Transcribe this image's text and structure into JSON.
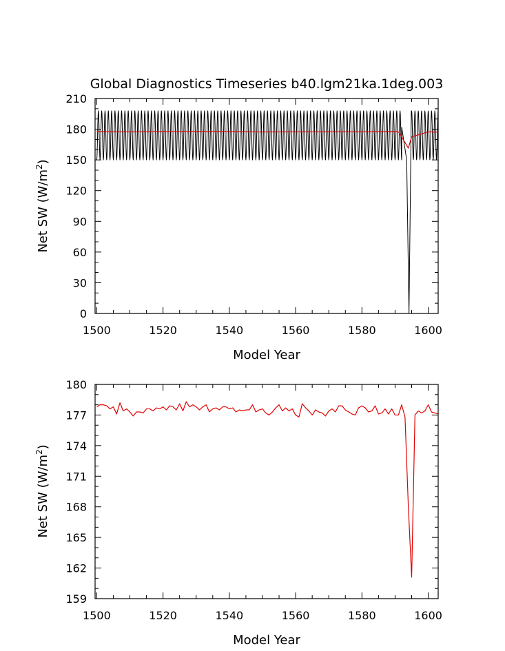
{
  "figure": {
    "title": "Global Diagnostics Timeseries b40.lgm21ka.1deg.003"
  },
  "colors": {
    "monthly_series": "#000000",
    "annual_series": "#e00000",
    "axes": "#000000",
    "background": "#ffffff"
  },
  "chart_data": [
    {
      "type": "line",
      "title": "Global Diagnostics Timeseries b40.lgm21ka.1deg.003",
      "xlabel": "Model Year",
      "ylabel_main": "Net SW (W/m",
      "ylabel_sup": "2",
      "ylabel_close": ")",
      "xlim": [
        1499.5,
        1603
      ],
      "ylim": [
        0,
        210
      ],
      "xticks": [
        1500,
        1520,
        1540,
        1560,
        1580,
        1600
      ],
      "yticks": [
        0,
        30,
        60,
        90,
        120,
        150,
        180,
        210
      ],
      "grid": false,
      "series": [
        {
          "role": "monthly",
          "color": "#000000",
          "x_start": 1500,
          "x_end": 1603,
          "cycle_years": 1,
          "min": 150,
          "max": 198,
          "dropout": {
            "start_year": 1592,
            "x": [
              1592.0,
              1593.5,
              1594.2,
              1594.9
            ],
            "y": [
              182,
              150,
              0,
              198
            ]
          }
        },
        {
          "role": "annual",
          "color": "#e00000",
          "x": [
            1500,
            1510,
            1520,
            1530,
            1540,
            1550,
            1560,
            1570,
            1580,
            1590,
            1591,
            1592,
            1593,
            1594,
            1595,
            1600,
            1603
          ],
          "y": [
            177.6,
            177.4,
            177.6,
            177.7,
            177.6,
            177.3,
            177.4,
            177.5,
            177.5,
            177.6,
            177.4,
            172.5,
            167,
            161.5,
            172.6,
            177.4,
            177.2
          ]
        }
      ]
    },
    {
      "type": "line",
      "title": "",
      "xlabel": "Model Year",
      "ylabel_main": "Net SW (W/m",
      "ylabel_sup": "2",
      "ylabel_close": ")",
      "xlim": [
        1499.5,
        1603
      ],
      "ylim": [
        159,
        180
      ],
      "xticks": [
        1500,
        1520,
        1540,
        1560,
        1580,
        1600
      ],
      "yticks": [
        159,
        162,
        165,
        168,
        171,
        174,
        177,
        180
      ],
      "grid": false,
      "series": [
        {
          "role": "annual",
          "color": "#e00000",
          "x": [
            1500,
            1501,
            1502,
            1503,
            1504,
            1505,
            1506,
            1507,
            1508,
            1509,
            1510,
            1511,
            1512,
            1513,
            1514,
            1515,
            1516,
            1517,
            1518,
            1519,
            1520,
            1521,
            1522,
            1523,
            1524,
            1525,
            1526,
            1527,
            1528,
            1529,
            1530,
            1531,
            1532,
            1533,
            1534,
            1535,
            1536,
            1537,
            1538,
            1539,
            1540,
            1541,
            1542,
            1543,
            1544,
            1545,
            1546,
            1547,
            1548,
            1549,
            1550,
            1551,
            1552,
            1553,
            1554,
            1555,
            1556,
            1557,
            1558,
            1559,
            1560,
            1561,
            1562,
            1563,
            1564,
            1565,
            1566,
            1567,
            1568,
            1569,
            1570,
            1571,
            1572,
            1573,
            1574,
            1575,
            1576,
            1577,
            1578,
            1579,
            1580,
            1581,
            1582,
            1583,
            1584,
            1585,
            1586,
            1587,
            1588,
            1589,
            1590,
            1591,
            1592,
            1593,
            1594,
            1595,
            1596,
            1597,
            1598,
            1599,
            1600,
            1601,
            1602,
            1603
          ],
          "y": [
            177.8,
            178.0,
            178.0,
            177.9,
            177.6,
            177.8,
            177.1,
            178.2,
            177.4,
            177.6,
            177.3,
            176.9,
            177.3,
            177.3,
            177.2,
            177.6,
            177.6,
            177.4,
            177.7,
            177.6,
            177.8,
            177.5,
            177.9,
            177.8,
            177.5,
            178.1,
            177.4,
            178.3,
            177.8,
            178.0,
            177.8,
            177.5,
            177.8,
            178.0,
            177.3,
            177.6,
            177.7,
            177.5,
            177.8,
            177.8,
            177.6,
            177.7,
            177.3,
            177.5,
            177.4,
            177.5,
            177.5,
            178.0,
            177.3,
            177.5,
            177.6,
            177.2,
            177.0,
            177.3,
            177.7,
            178.0,
            177.4,
            177.7,
            177.4,
            177.6,
            177.0,
            176.8,
            178.1,
            177.7,
            177.4,
            177.0,
            177.5,
            177.3,
            177.2,
            176.9,
            177.4,
            177.6,
            177.3,
            177.9,
            177.9,
            177.5,
            177.3,
            177.1,
            177.0,
            177.7,
            177.9,
            177.7,
            177.3,
            177.4,
            177.9,
            177.1,
            177.2,
            177.6,
            177.1,
            177.6,
            177.0,
            177.0,
            178.0,
            176.8,
            168.0,
            161.1,
            177.0,
            177.4,
            177.2,
            177.4,
            178.0,
            177.3,
            177.2,
            177.1
          ]
        }
      ]
    }
  ]
}
